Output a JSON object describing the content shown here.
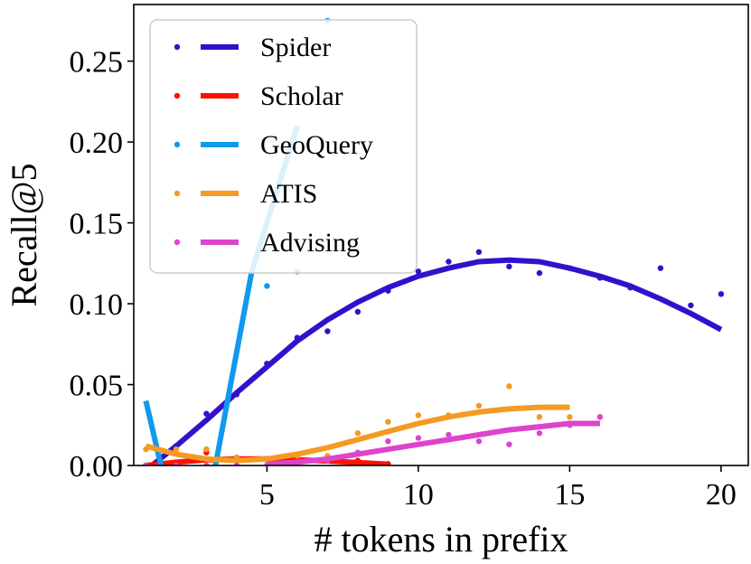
{
  "chart_data": {
    "type": "scatter",
    "xlabel": "# tokens in prefix",
    "ylabel": "Recall@5",
    "xlim": [
      0.6,
      20.9
    ],
    "ylim": [
      0,
      0.285
    ],
    "xticks": [
      5,
      10,
      15,
      20
    ],
    "yticks": [
      0.0,
      0.05,
      0.1,
      0.15,
      0.2,
      0.25
    ],
    "xtick_labels": [
      "5",
      "10",
      "15",
      "20"
    ],
    "ytick_labels": [
      "0.00",
      "0.05",
      "0.10",
      "0.15",
      "0.20",
      "0.25"
    ],
    "legend_position": "top-left",
    "grid": false,
    "series": [
      {
        "name": "Spider",
        "color": "#3311cc",
        "points": [
          [
            1,
            0.0
          ],
          [
            2,
            0.012
          ],
          [
            3,
            0.032
          ],
          [
            4,
            0.044
          ],
          [
            5,
            0.063
          ],
          [
            6,
            0.079
          ],
          [
            7,
            0.083
          ],
          [
            8,
            0.095
          ],
          [
            9,
            0.108
          ],
          [
            10,
            0.12
          ],
          [
            11,
            0.126
          ],
          [
            12,
            0.132
          ],
          [
            13,
            0.123
          ],
          [
            14,
            0.119
          ],
          [
            15,
            0.122
          ],
          [
            16,
            0.116
          ],
          [
            17,
            0.11
          ],
          [
            18,
            0.122
          ],
          [
            19,
            0.099
          ],
          [
            20,
            0.106
          ]
        ],
        "fit": [
          [
            1.2,
            0.0
          ],
          [
            2,
            0.012
          ],
          [
            3,
            0.028
          ],
          [
            4,
            0.045
          ],
          [
            5,
            0.061
          ],
          [
            6,
            0.077
          ],
          [
            7,
            0.09
          ],
          [
            8,
            0.101
          ],
          [
            9,
            0.11
          ],
          [
            10,
            0.117
          ],
          [
            11,
            0.122
          ],
          [
            12,
            0.126
          ],
          [
            13,
            0.127
          ],
          [
            14,
            0.126
          ],
          [
            15,
            0.122
          ],
          [
            16,
            0.117
          ],
          [
            17,
            0.111
          ],
          [
            18,
            0.103
          ],
          [
            19,
            0.094
          ],
          [
            20,
            0.084
          ]
        ]
      },
      {
        "name": "Scholar",
        "color": "#ff1100",
        "points": [
          [
            1,
            0.0
          ],
          [
            2,
            0.002
          ],
          [
            3,
            0.008
          ],
          [
            4,
            0.005
          ],
          [
            5,
            0.004
          ],
          [
            6,
            0.005
          ],
          [
            7,
            0.004
          ],
          [
            8,
            0.003
          ],
          [
            9,
            0.001
          ]
        ],
        "fit": [
          [
            1,
            0.0
          ],
          [
            2,
            0.002
          ],
          [
            3,
            0.0035
          ],
          [
            4,
            0.004
          ],
          [
            5,
            0.004
          ],
          [
            6,
            0.0035
          ],
          [
            7,
            0.0028
          ],
          [
            8,
            0.0018
          ],
          [
            9,
            0.0008
          ]
        ]
      },
      {
        "name": "GeoQuery",
        "color": "#1199ee",
        "points": [
          [
            1,
            0.0
          ],
          [
            3,
            0.01
          ],
          [
            5,
            0.111
          ],
          [
            6,
            0.12
          ],
          [
            7,
            0.275
          ]
        ],
        "fit": [
          [
            1,
            0.04
          ],
          [
            1.5,
            0.0
          ],
          [
            2.5,
            -0.04
          ],
          [
            3.3,
            0.0
          ],
          [
            4.5,
            0.12
          ],
          [
            6,
            0.21
          ]
        ]
      },
      {
        "name": "ATIS",
        "color": "#f59a22",
        "points": [
          [
            1,
            0.01
          ],
          [
            2,
            0.01
          ],
          [
            3,
            0.01
          ],
          [
            4,
            0.005
          ],
          [
            5,
            0.003
          ],
          [
            6,
            0.006
          ],
          [
            7,
            0.006
          ],
          [
            8,
            0.02
          ],
          [
            9,
            0.027
          ],
          [
            10,
            0.031
          ],
          [
            11,
            0.031
          ],
          [
            12,
            0.037
          ],
          [
            13,
            0.049
          ],
          [
            14,
            0.03
          ],
          [
            15,
            0.03
          ]
        ],
        "fit": [
          [
            1,
            0.012
          ],
          [
            2,
            0.007
          ],
          [
            3,
            0.004
          ],
          [
            4,
            0.003
          ],
          [
            5,
            0.004
          ],
          [
            6,
            0.007
          ],
          [
            7,
            0.011
          ],
          [
            8,
            0.016
          ],
          [
            9,
            0.021
          ],
          [
            10,
            0.026
          ],
          [
            11,
            0.03
          ],
          [
            12,
            0.033
          ],
          [
            13,
            0.035
          ],
          [
            14,
            0.036
          ],
          [
            15,
            0.036
          ]
        ]
      },
      {
        "name": "Advising",
        "color": "#dd44cc",
        "points": [
          [
            1,
            0.0
          ],
          [
            2,
            0.0
          ],
          [
            3,
            0.0
          ],
          [
            4,
            0.0
          ],
          [
            5,
            0.0
          ],
          [
            6,
            0.0
          ],
          [
            7,
            0.003
          ],
          [
            8,
            0.008
          ],
          [
            9,
            0.015
          ],
          [
            10,
            0.017
          ],
          [
            11,
            0.019
          ],
          [
            12,
            0.015
          ],
          [
            13,
            0.013
          ],
          [
            14,
            0.02
          ],
          [
            15,
            0.025
          ],
          [
            16,
            0.03
          ]
        ],
        "fit": [
          [
            5,
            0.001
          ],
          [
            6,
            0.002
          ],
          [
            7,
            0.004
          ],
          [
            8,
            0.007
          ],
          [
            9,
            0.01
          ],
          [
            10,
            0.013
          ],
          [
            11,
            0.016
          ],
          [
            12,
            0.019
          ],
          [
            13,
            0.022
          ],
          [
            14,
            0.024
          ],
          [
            15,
            0.026
          ],
          [
            16,
            0.026
          ]
        ]
      }
    ]
  }
}
